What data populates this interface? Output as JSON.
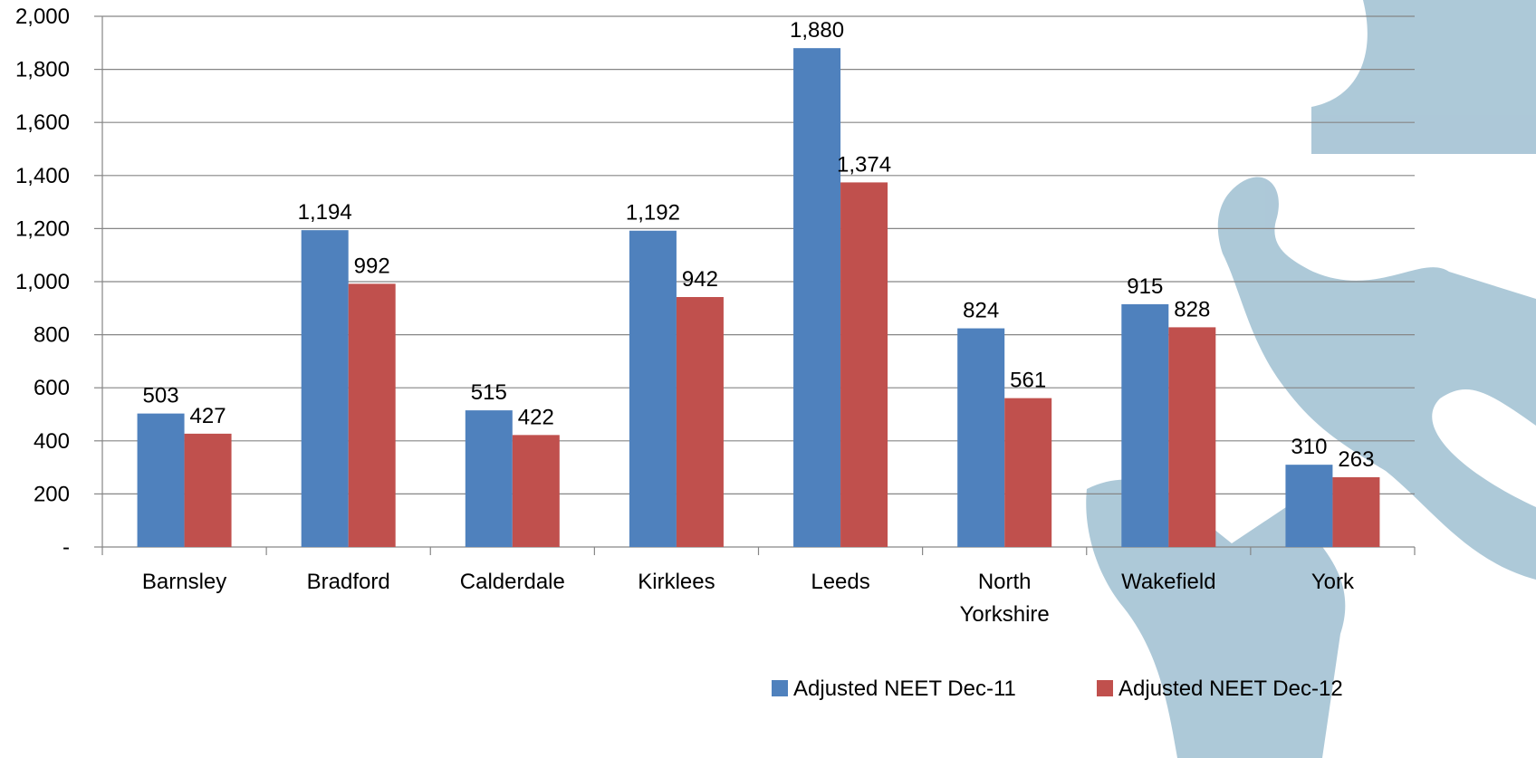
{
  "chart_data": {
    "type": "bar",
    "categories": [
      [
        "Barnsley"
      ],
      [
        "Bradford"
      ],
      [
        "Calderdale"
      ],
      [
        "Kirklees"
      ],
      [
        "Leeds"
      ],
      [
        "North",
        "Yorkshire"
      ],
      [
        "Wakefield"
      ],
      [
        "York"
      ]
    ],
    "series": [
      {
        "name": "Adjusted NEET Dec-11",
        "color": "#4F81BD",
        "values": [
          503,
          1194,
          515,
          1192,
          1880,
          824,
          915,
          310
        ],
        "labels": [
          "503",
          "1,194",
          "515",
          "1,192",
          "1,880",
          "824",
          "915",
          "310"
        ]
      },
      {
        "name": "Adjusted NEET Dec-12",
        "color": "#C0504D",
        "values": [
          427,
          992,
          422,
          942,
          1374,
          561,
          828,
          263
        ],
        "labels": [
          "427",
          "992",
          "422",
          "942",
          "1,374",
          "561",
          "828",
          "263"
        ]
      }
    ],
    "ylim": [
      0,
      2000
    ],
    "yticks": [
      0,
      200,
      400,
      600,
      800,
      1000,
      1200,
      1400,
      1600,
      1800,
      2000
    ],
    "ytick_labels": [
      "-",
      "200",
      "400",
      "600",
      "800",
      "1,000",
      "1,200",
      "1,400",
      "1,600",
      "1,800",
      "2,000"
    ],
    "grid": true,
    "legend_position": "bottom-right",
    "watermark_color": "#A9C6D6"
  }
}
